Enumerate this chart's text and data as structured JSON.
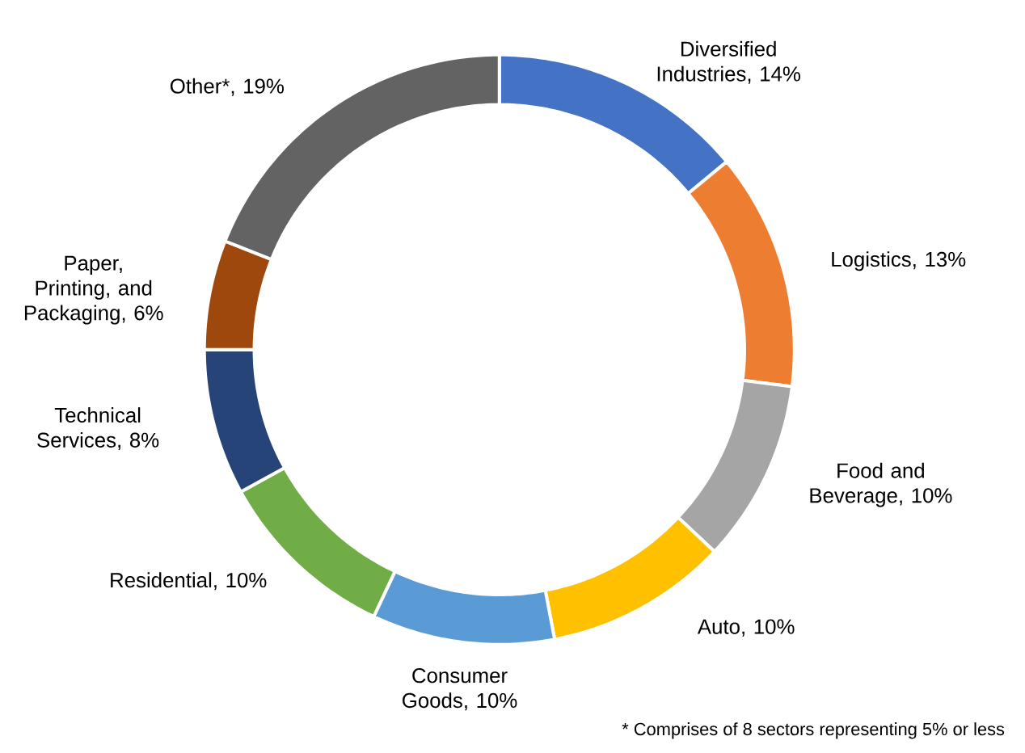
{
  "chart_data": {
    "type": "donut",
    "categories": [
      "Diversified Industries",
      "Logistics",
      "Food and Beverage",
      "Auto",
      "Consumer Goods",
      "Residential",
      "Technical Services",
      "Paper, Printing, and Packaging",
      "Other*"
    ],
    "values": [
      14,
      13,
      10,
      10,
      10,
      10,
      8,
      6,
      19
    ],
    "value_labels": [
      ", 14%",
      ", 13%",
      ", 10%",
      ", 10%",
      ", 10%",
      ", 10%",
      ", 8%",
      ", 6%",
      ", 19%"
    ],
    "colors": [
      "#4472c4",
      "#ed7d31",
      "#a5a5a5",
      "#ffc000",
      "#5b9bd5",
      "#70ad47",
      "#264478",
      "#9e480e",
      "#636363"
    ],
    "annotations": [
      "* Comprises of 8 sectors representing 5% or less"
    ]
  }
}
